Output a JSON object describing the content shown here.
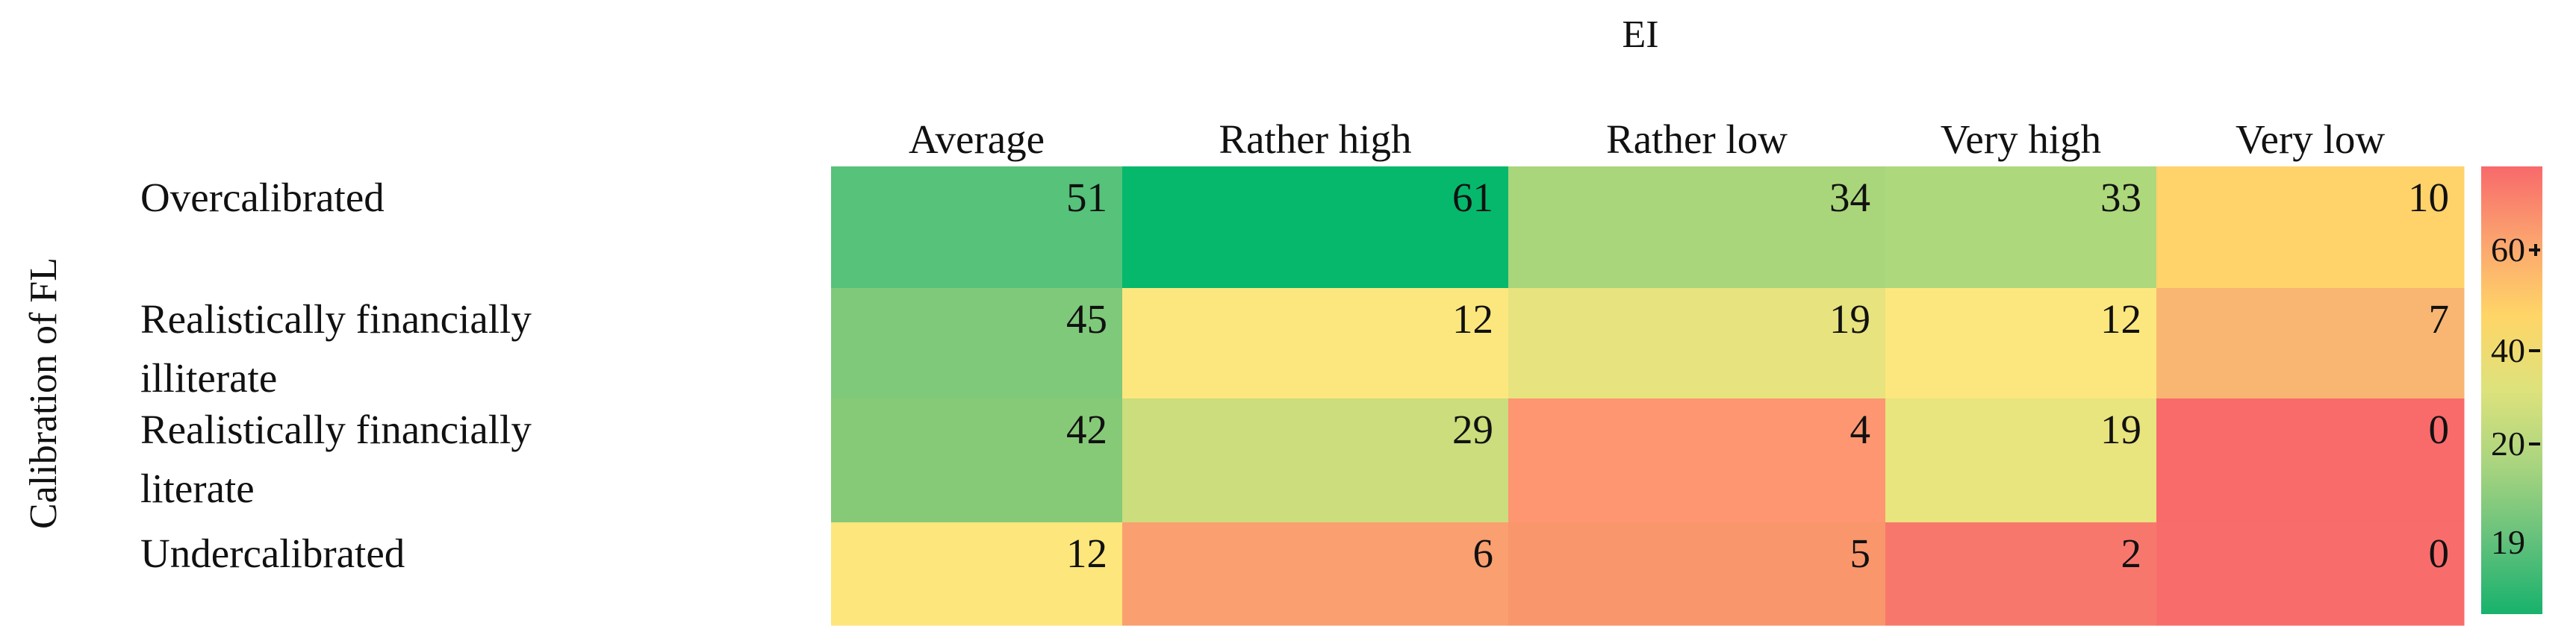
{
  "chart_data": {
    "type": "heatmap",
    "title": "EI",
    "ylabel": "Calibration of FL",
    "columns": [
      "Average",
      "Rather high",
      "Rather low",
      "Very high",
      "Very low"
    ],
    "rows": [
      [
        "Overcalibrated"
      ],
      [
        "Realistically financially",
        "illiterate"
      ],
      [
        "Realistically financially",
        "literate"
      ],
      [
        "Undercalibrated"
      ]
    ],
    "values": [
      [
        51,
        61,
        34,
        33,
        10
      ],
      [
        45,
        12,
        19,
        12,
        7
      ],
      [
        42,
        29,
        4,
        19,
        0
      ],
      [
        12,
        6,
        5,
        2,
        0
      ]
    ],
    "colors": [
      [
        "#56c27a",
        "#05b86c",
        "#a9d57b",
        "#add87c",
        "#ffd26a"
      ],
      [
        "#7ec97a",
        "#fce77e",
        "#e7e37e",
        "#fce77e",
        "#f9b672"
      ],
      [
        "#86ca78",
        "#cbdd7c",
        "#fd9671",
        "#e8e47e",
        "#f96a6b"
      ],
      [
        "#fde67b",
        "#fa9f70",
        "#f9966c",
        "#f8776c",
        "#f86d6b"
      ]
    ],
    "legend": {
      "labels": [
        "60",
        "40",
        "20",
        "19"
      ],
      "gradient": [
        "#f8696b",
        "#fba46f",
        "#ffd567",
        "#dde27c",
        "#a9d47f",
        "#64c17c",
        "#17b26c"
      ]
    }
  }
}
